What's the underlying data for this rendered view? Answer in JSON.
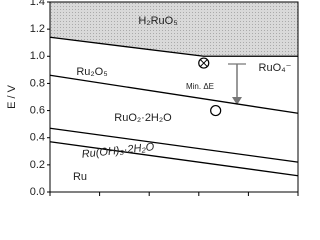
{
  "chart_data": {
    "type": "line",
    "y_label": "E / V",
    "xlim": [
      0,
      5
    ],
    "xticks": [
      0,
      1,
      2,
      3,
      4,
      5
    ],
    "ylim": [
      0,
      1.4
    ],
    "yticks": [
      {
        "value": 0,
        "label": "0.0"
      },
      0.2,
      0.4,
      0.6,
      0.8,
      {
        "value": 1,
        "label": "1.0"
      },
      1.2,
      1.4
    ],
    "fill_above_color": "#d9d9d9",
    "series": [
      {
        "color": "#000000",
        "x": [
          0,
          3.1,
          5
        ],
        "values": [
          1.14,
          1.0,
          1.0
        ]
      },
      {
        "color": "#000000",
        "x": [
          0,
          5
        ],
        "values": [
          0.86,
          0.58
        ]
      },
      {
        "color": "#000000",
        "x": [
          0,
          5
        ],
        "values": [
          0.47,
          0.22
        ]
      },
      {
        "color": "#000000",
        "x": [
          0,
          5
        ],
        "values": [
          0.37,
          0.12
        ]
      }
    ],
    "points": {
      "x": [
        3.1,
        3.34
      ],
      "values": [
        0.95,
        0.6
      ],
      "markers": [
        "otimes",
        "circle"
      ]
    },
    "annotations": [
      "H₂RuO₅",
      "Ru₂O₅",
      "RuO₄⁻",
      "RuO₂·2H₂O",
      "Ru(OH)₃·2H₂O",
      "Ru",
      "Min. ΔE"
    ]
  }
}
